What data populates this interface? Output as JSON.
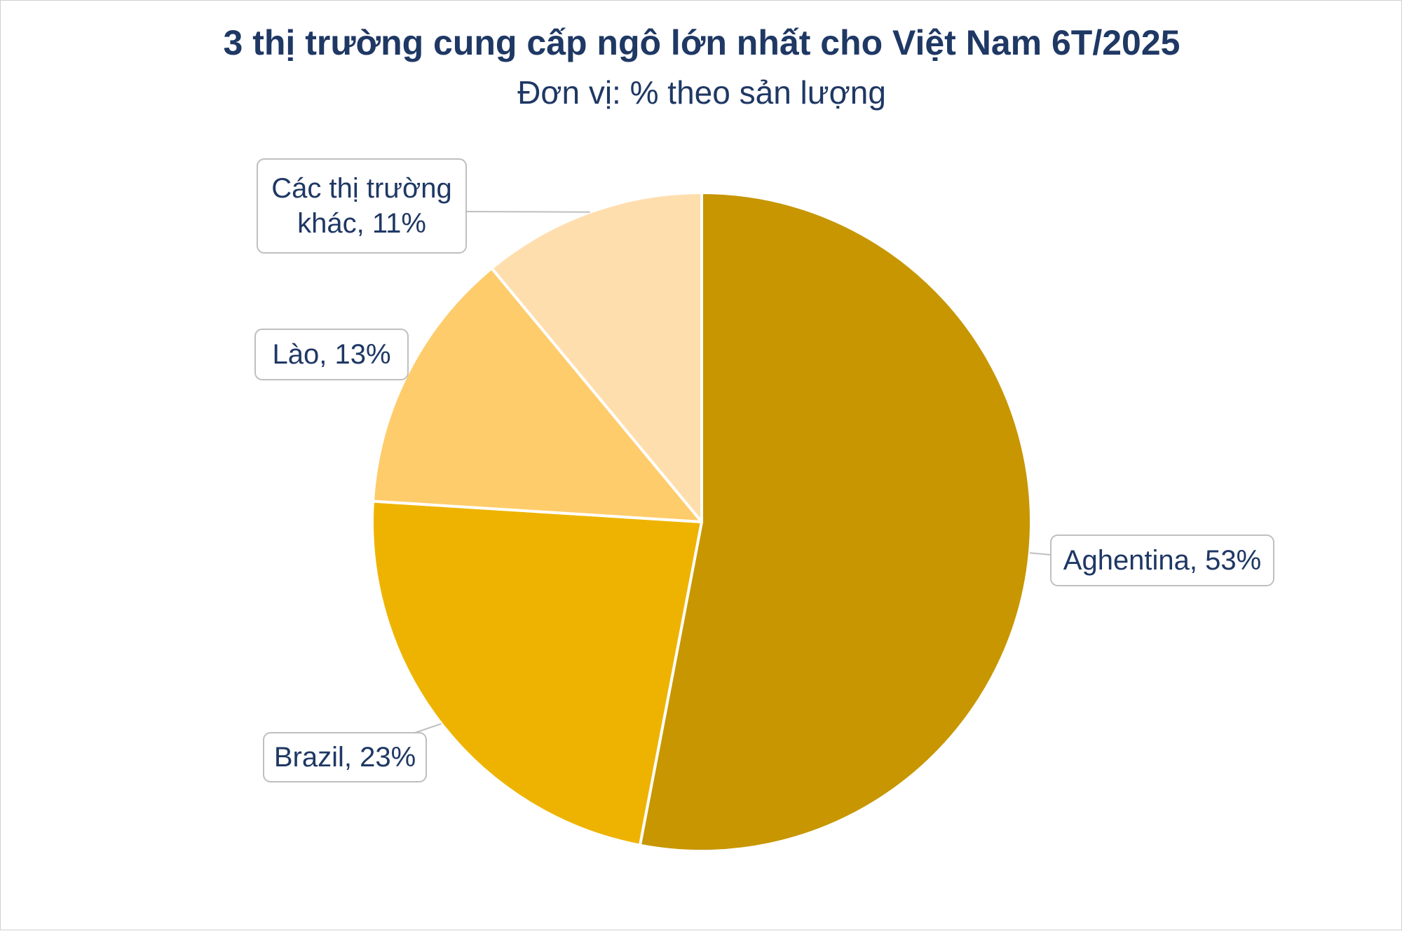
{
  "title": "3 thị trường cung cấp ngô lớn nhất cho Việt Nam 6T/2025",
  "subtitle": "Đơn vị: % theo sản lượng",
  "chart_data": {
    "type": "pie",
    "title": "3 thị trường cung cấp ngô lớn nhất cho Việt Nam 6T/2025",
    "subtitle": "Đơn vị: % theo sản lượng",
    "unit": "%",
    "slices": [
      {
        "name": "Aghentina",
        "value": 53,
        "label_lines": [
          "Aghentina, 53%"
        ],
        "color": "#C79600"
      },
      {
        "name": "Brazil",
        "value": 23,
        "label_lines": [
          "Brazil, 23%"
        ],
        "color": "#EEB300"
      },
      {
        "name": "Lào",
        "value": 13,
        "label_lines": [
          "Lào, 13%"
        ],
        "color": "#FFCC6B"
      },
      {
        "name": "Các thị trường khác",
        "value": 11,
        "label_lines": [
          "Các thị trường",
          "khác, 11%"
        ],
        "color": "#FFDEAE"
      }
    ]
  }
}
